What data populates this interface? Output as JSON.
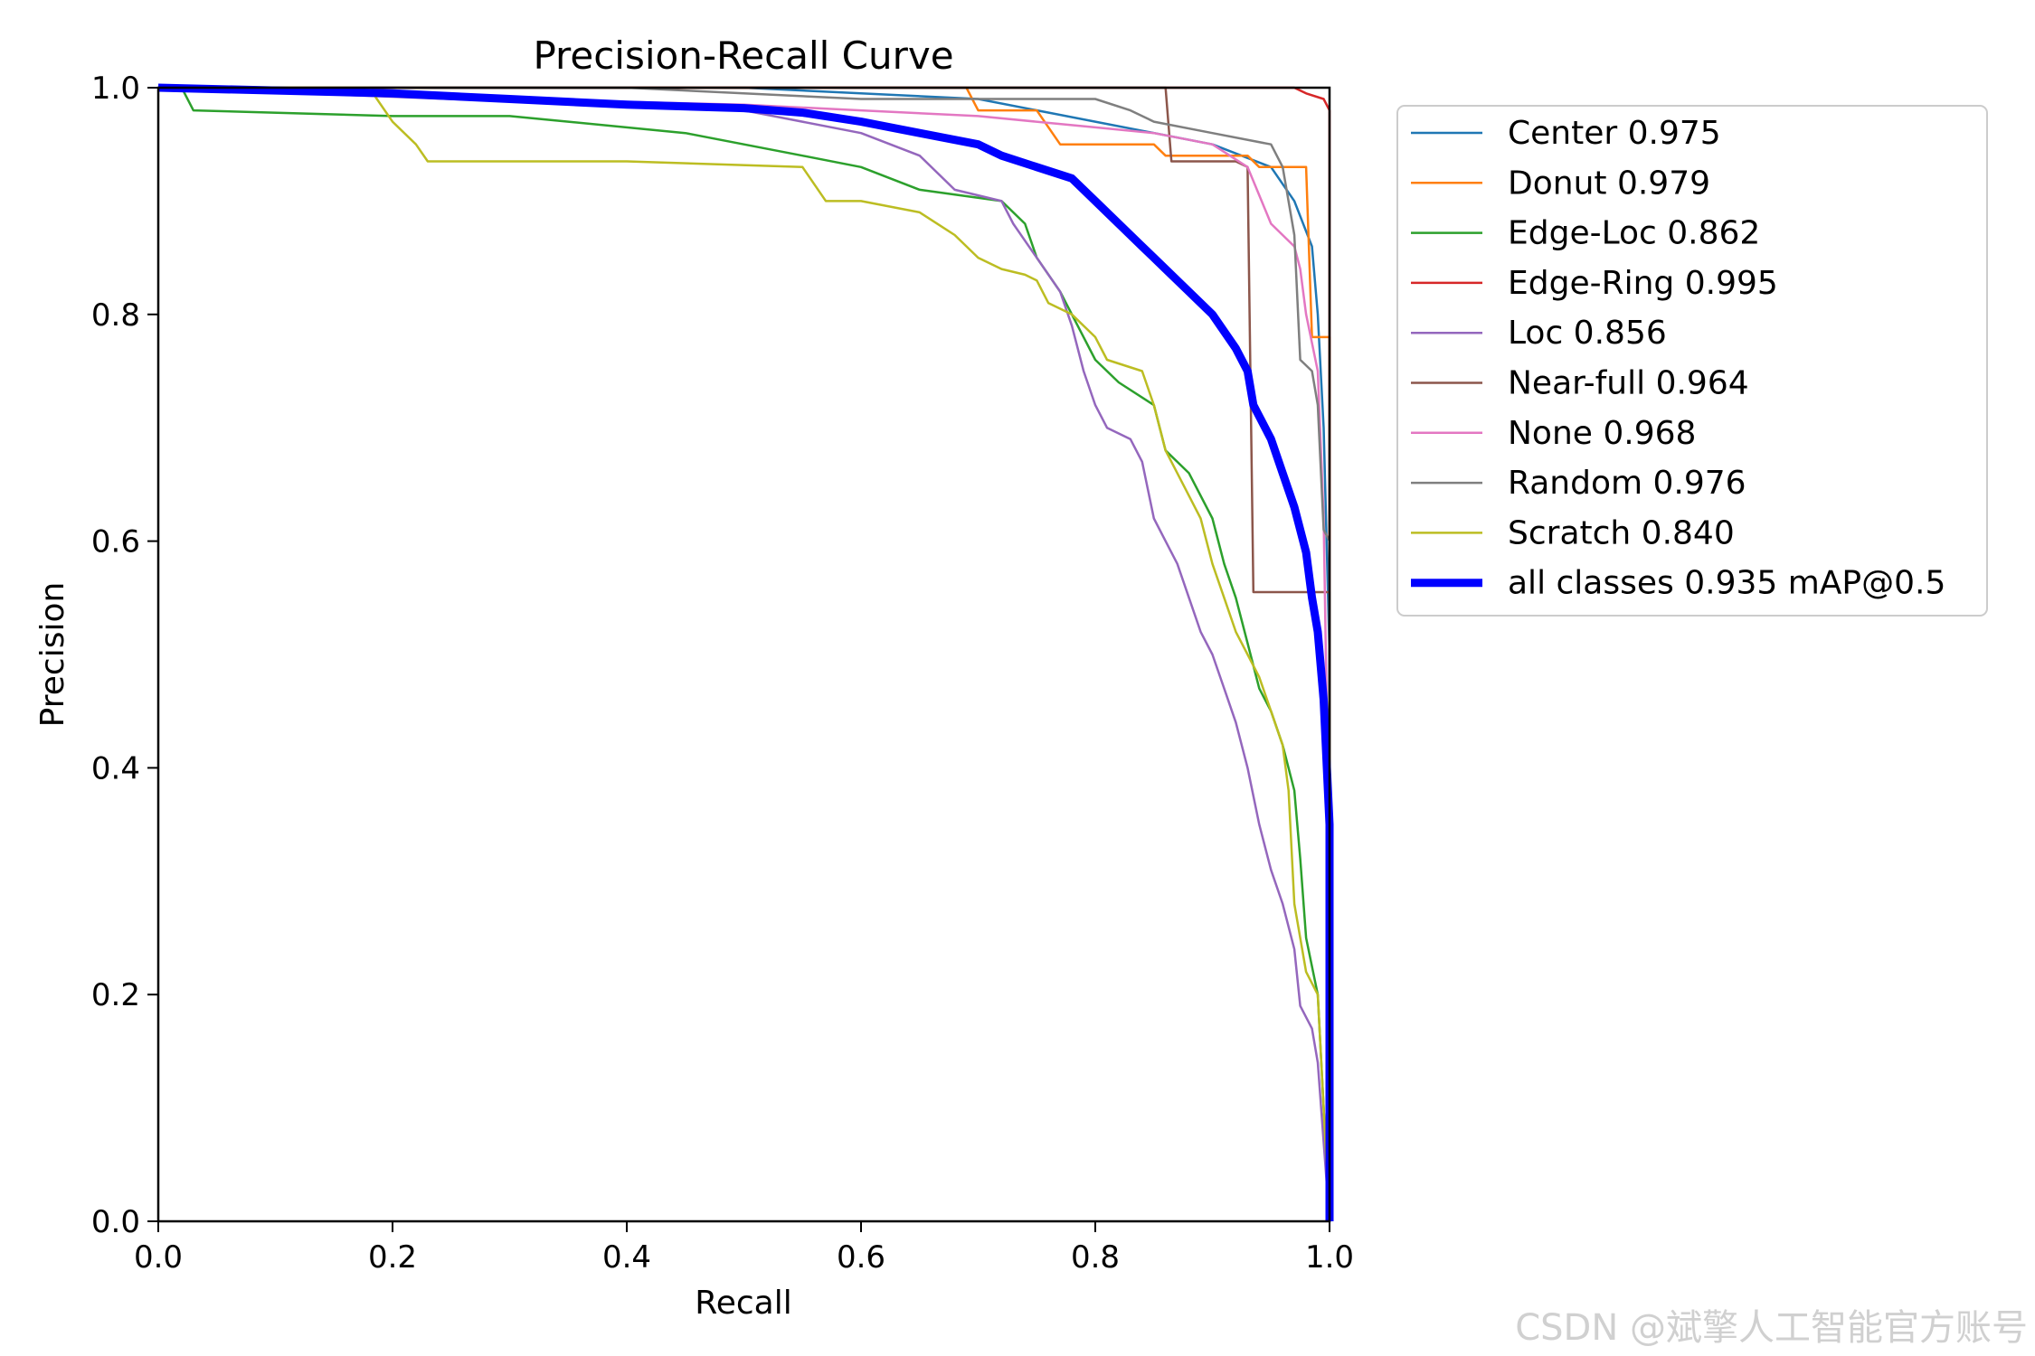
{
  "chart_data": {
    "type": "line",
    "title": "Precision-Recall Curve",
    "xlabel": "Recall",
    "ylabel": "Precision",
    "xlim": [
      0,
      1
    ],
    "ylim": [
      0,
      1
    ],
    "xticks": [
      "0.0",
      "0.2",
      "0.4",
      "0.6",
      "0.8",
      "1.0"
    ],
    "yticks": [
      "0.0",
      "0.2",
      "0.4",
      "0.6",
      "0.8",
      "1.0"
    ],
    "grid": false,
    "legend_position": "outside-right-top",
    "series": [
      {
        "name": "Center 0.975",
        "color": "#1f77b4",
        "points": [
          [
            0,
            1
          ],
          [
            0.5,
            1
          ],
          [
            0.7,
            0.99
          ],
          [
            0.8,
            0.97
          ],
          [
            0.9,
            0.95
          ],
          [
            0.95,
            0.93
          ],
          [
            0.97,
            0.9
          ],
          [
            0.985,
            0.86
          ],
          [
            0.99,
            0.8
          ],
          [
            0.995,
            0.7
          ],
          [
            1.0,
            0.5
          ],
          [
            1.0,
            0.0
          ]
        ]
      },
      {
        "name": "Donut 0.979",
        "color": "#ff7f0e",
        "points": [
          [
            0,
            1
          ],
          [
            0.69,
            1
          ],
          [
            0.7,
            0.98
          ],
          [
            0.75,
            0.98
          ],
          [
            0.77,
            0.95
          ],
          [
            0.85,
            0.95
          ],
          [
            0.86,
            0.94
          ],
          [
            0.93,
            0.94
          ],
          [
            0.94,
            0.93
          ],
          [
            0.98,
            0.93
          ],
          [
            0.985,
            0.78
          ],
          [
            1.0,
            0.78
          ],
          [
            1.0,
            0.0
          ]
        ]
      },
      {
        "name": "Edge-Loc 0.862",
        "color": "#2ca02c",
        "points": [
          [
            0,
            1
          ],
          [
            0.02,
            1
          ],
          [
            0.03,
            0.98
          ],
          [
            0.2,
            0.975
          ],
          [
            0.3,
            0.975
          ],
          [
            0.35,
            0.97
          ],
          [
            0.45,
            0.96
          ],
          [
            0.55,
            0.94
          ],
          [
            0.6,
            0.93
          ],
          [
            0.65,
            0.91
          ],
          [
            0.72,
            0.9
          ],
          [
            0.74,
            0.88
          ],
          [
            0.75,
            0.85
          ],
          [
            0.77,
            0.82
          ],
          [
            0.78,
            0.8
          ],
          [
            0.8,
            0.76
          ],
          [
            0.82,
            0.74
          ],
          [
            0.85,
            0.72
          ],
          [
            0.86,
            0.68
          ],
          [
            0.88,
            0.66
          ],
          [
            0.9,
            0.62
          ],
          [
            0.91,
            0.58
          ],
          [
            0.92,
            0.55
          ],
          [
            0.93,
            0.51
          ],
          [
            0.94,
            0.47
          ],
          [
            0.95,
            0.45
          ],
          [
            0.96,
            0.42
          ],
          [
            0.97,
            0.38
          ],
          [
            0.975,
            0.32
          ],
          [
            0.98,
            0.25
          ],
          [
            0.99,
            0.2
          ],
          [
            0.995,
            0.1
          ],
          [
            1.0,
            0.0
          ]
        ]
      },
      {
        "name": "Edge-Ring 0.995",
        "color": "#d62728",
        "points": [
          [
            0,
            1
          ],
          [
            0.97,
            1
          ],
          [
            0.98,
            0.995
          ],
          [
            0.995,
            0.99
          ],
          [
            1.0,
            0.98
          ],
          [
            1.0,
            0.0
          ]
        ]
      },
      {
        "name": "Loc 0.856",
        "color": "#9467bd",
        "points": [
          [
            0,
            1
          ],
          [
            0.5,
            0.98
          ],
          [
            0.6,
            0.96
          ],
          [
            0.65,
            0.94
          ],
          [
            0.68,
            0.91
          ],
          [
            0.72,
            0.9
          ],
          [
            0.73,
            0.88
          ],
          [
            0.75,
            0.85
          ],
          [
            0.77,
            0.82
          ],
          [
            0.78,
            0.79
          ],
          [
            0.79,
            0.75
          ],
          [
            0.8,
            0.72
          ],
          [
            0.81,
            0.7
          ],
          [
            0.83,
            0.69
          ],
          [
            0.84,
            0.67
          ],
          [
            0.85,
            0.62
          ],
          [
            0.86,
            0.6
          ],
          [
            0.87,
            0.58
          ],
          [
            0.88,
            0.55
          ],
          [
            0.89,
            0.52
          ],
          [
            0.9,
            0.5
          ],
          [
            0.91,
            0.47
          ],
          [
            0.92,
            0.44
          ],
          [
            0.93,
            0.4
          ],
          [
            0.94,
            0.35
          ],
          [
            0.95,
            0.31
          ],
          [
            0.96,
            0.28
          ],
          [
            0.97,
            0.24
          ],
          [
            0.975,
            0.19
          ],
          [
            0.985,
            0.17
          ],
          [
            0.99,
            0.14
          ],
          [
            1.0,
            0.0
          ]
        ]
      },
      {
        "name": "Near-full 0.964",
        "color": "#8c564b",
        "points": [
          [
            0,
            1
          ],
          [
            0.86,
            1
          ],
          [
            0.865,
            0.935
          ],
          [
            0.92,
            0.935
          ],
          [
            0.93,
            0.93
          ],
          [
            0.935,
            0.555
          ],
          [
            0.99,
            0.555
          ],
          [
            1.0,
            0.555
          ],
          [
            1.0,
            0.0
          ]
        ]
      },
      {
        "name": "None 0.968",
        "color": "#e377c2",
        "points": [
          [
            0,
            1
          ],
          [
            0.15,
            0.995
          ],
          [
            0.3,
            0.99
          ],
          [
            0.5,
            0.985
          ],
          [
            0.6,
            0.98
          ],
          [
            0.7,
            0.975
          ],
          [
            0.8,
            0.965
          ],
          [
            0.85,
            0.96
          ],
          [
            0.9,
            0.95
          ],
          [
            0.93,
            0.93
          ],
          [
            0.95,
            0.88
          ],
          [
            0.97,
            0.86
          ],
          [
            0.975,
            0.84
          ],
          [
            0.98,
            0.8
          ],
          [
            0.99,
            0.75
          ],
          [
            0.995,
            0.62
          ],
          [
            1.0,
            0.3
          ],
          [
            1.0,
            0.0
          ]
        ]
      },
      {
        "name": "Random 0.976",
        "color": "#7f7f7f",
        "points": [
          [
            0,
            1
          ],
          [
            0.4,
            1
          ],
          [
            0.6,
            0.99
          ],
          [
            0.7,
            0.99
          ],
          [
            0.8,
            0.99
          ],
          [
            0.83,
            0.98
          ],
          [
            0.85,
            0.97
          ],
          [
            0.9,
            0.96
          ],
          [
            0.95,
            0.95
          ],
          [
            0.96,
            0.93
          ],
          [
            0.97,
            0.87
          ],
          [
            0.975,
            0.76
          ],
          [
            0.985,
            0.75
          ],
          [
            0.99,
            0.72
          ],
          [
            0.995,
            0.61
          ],
          [
            1.0,
            0.6
          ],
          [
            1.0,
            0.0
          ]
        ]
      },
      {
        "name": "Scratch 0.840",
        "color": "#bcbd22",
        "points": [
          [
            0,
            1
          ],
          [
            0.18,
            1
          ],
          [
            0.2,
            0.97
          ],
          [
            0.22,
            0.95
          ],
          [
            0.23,
            0.935
          ],
          [
            0.4,
            0.935
          ],
          [
            0.55,
            0.93
          ],
          [
            0.57,
            0.9
          ],
          [
            0.6,
            0.9
          ],
          [
            0.65,
            0.89
          ],
          [
            0.68,
            0.87
          ],
          [
            0.7,
            0.85
          ],
          [
            0.72,
            0.84
          ],
          [
            0.74,
            0.835
          ],
          [
            0.75,
            0.83
          ],
          [
            0.76,
            0.81
          ],
          [
            0.78,
            0.8
          ],
          [
            0.8,
            0.78
          ],
          [
            0.81,
            0.76
          ],
          [
            0.84,
            0.75
          ],
          [
            0.85,
            0.72
          ],
          [
            0.86,
            0.68
          ],
          [
            0.87,
            0.66
          ],
          [
            0.88,
            0.64
          ],
          [
            0.89,
            0.62
          ],
          [
            0.9,
            0.58
          ],
          [
            0.91,
            0.55
          ],
          [
            0.92,
            0.52
          ],
          [
            0.93,
            0.5
          ],
          [
            0.94,
            0.48
          ],
          [
            0.95,
            0.45
          ],
          [
            0.96,
            0.42
          ],
          [
            0.965,
            0.38
          ],
          [
            0.97,
            0.28
          ],
          [
            0.98,
            0.22
          ],
          [
            0.99,
            0.2
          ],
          [
            0.995,
            0.1
          ],
          [
            1.0,
            0.0
          ]
        ]
      },
      {
        "name": "all classes 0.935 mAP@0.5",
        "color": "#0000ff",
        "thick": true,
        "points": [
          [
            0,
            1
          ],
          [
            0.2,
            0.995
          ],
          [
            0.3,
            0.99
          ],
          [
            0.4,
            0.985
          ],
          [
            0.5,
            0.982
          ],
          [
            0.55,
            0.978
          ],
          [
            0.6,
            0.97
          ],
          [
            0.65,
            0.96
          ],
          [
            0.7,
            0.95
          ],
          [
            0.72,
            0.94
          ],
          [
            0.75,
            0.93
          ],
          [
            0.78,
            0.92
          ],
          [
            0.8,
            0.9
          ],
          [
            0.82,
            0.88
          ],
          [
            0.84,
            0.86
          ],
          [
            0.86,
            0.84
          ],
          [
            0.88,
            0.82
          ],
          [
            0.9,
            0.8
          ],
          [
            0.92,
            0.77
          ],
          [
            0.93,
            0.75
          ],
          [
            0.935,
            0.72
          ],
          [
            0.95,
            0.69
          ],
          [
            0.96,
            0.66
          ],
          [
            0.97,
            0.63
          ],
          [
            0.98,
            0.59
          ],
          [
            0.985,
            0.55
          ],
          [
            0.99,
            0.52
          ],
          [
            0.995,
            0.46
          ],
          [
            1.0,
            0.35
          ],
          [
            1.0,
            0.0
          ]
        ]
      }
    ]
  },
  "watermark": "CSDN @斌擎人工智能官方账号"
}
